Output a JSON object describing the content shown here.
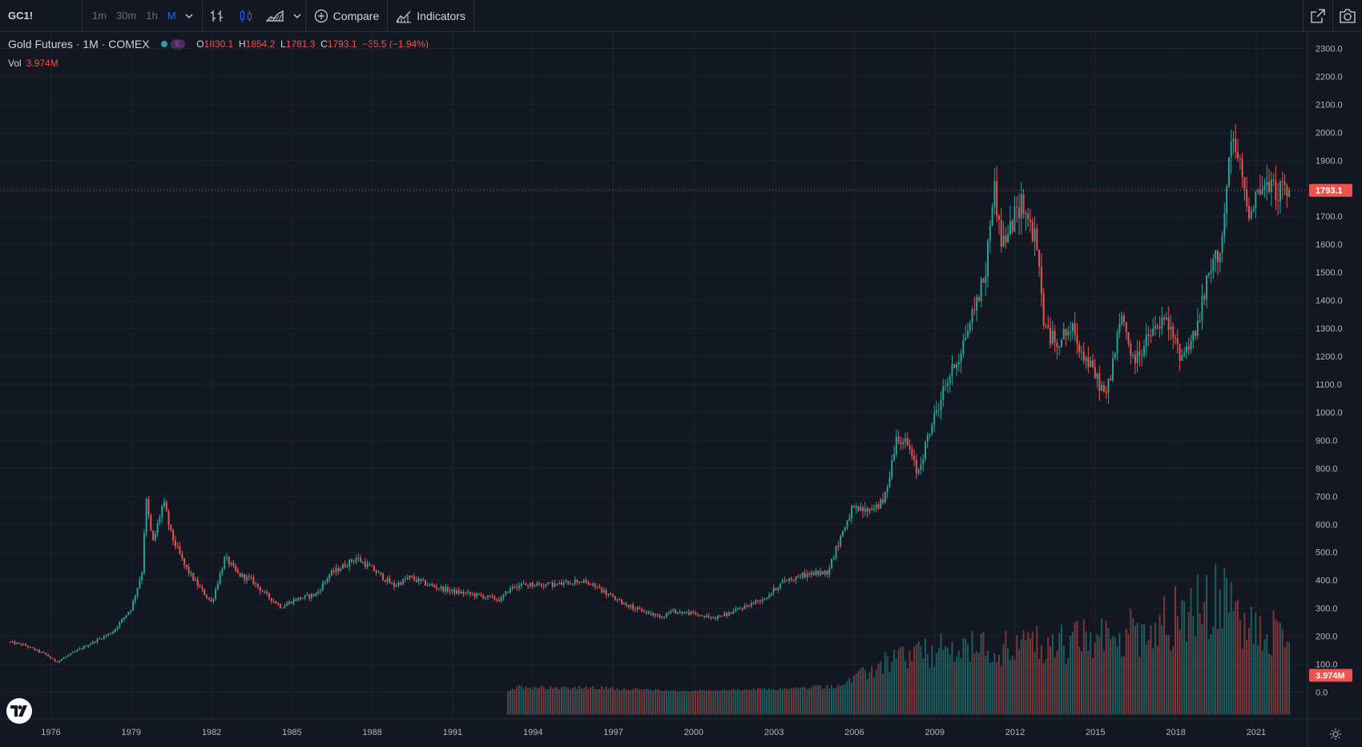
{
  "toolbar": {
    "symbol": "GC1!",
    "intervals": [
      "1m",
      "30m",
      "1h",
      "M"
    ],
    "active_interval": "M",
    "compare_label": "Compare",
    "indicators_label": "Indicators"
  },
  "legend": {
    "name": "Gold Futures · 1M · COMEX",
    "badge": "E",
    "o_label": "O",
    "o": "1830.1",
    "h_label": "H",
    "h": "1854.2",
    "l_label": "L",
    "l": "1781.3",
    "c_label": "C",
    "c": "1793.1",
    "change": "−35.5 (−1.94%)",
    "vol_label": "Vol",
    "vol": "3.974M"
  },
  "colors": {
    "up": "#26a69a",
    "down": "#ef5350",
    "bg": "#131722",
    "grid": "#1e222d",
    "axis_text": "#b2b5be"
  },
  "chart_data": {
    "type": "candlestick",
    "title": "",
    "xlabel": "",
    "ylabel": "",
    "ylim": [
      -30,
      2330
    ],
    "x_ticks": [
      "1976",
      "1979",
      "1982",
      "1985",
      "1988",
      "1991",
      "1994",
      "1997",
      "2000",
      "2003",
      "2006",
      "2009",
      "2012",
      "2015",
      "2018",
      "2021"
    ],
    "y_ticks": [
      "2300.0",
      "2200.0",
      "2100.0",
      "2000.0",
      "1900.0",
      "1800.0",
      "1700.0",
      "1600.0",
      "1500.0",
      "1400.0",
      "1300.0",
      "1200.0",
      "1100.0",
      "1000.0",
      "900.0",
      "800.0",
      "700.0",
      "600.0",
      "500.0",
      "400.0",
      "300.0",
      "200.0",
      "100.0",
      "0.0"
    ],
    "last_price": 1793.1,
    "last_price_label": "1793.1",
    "last_volume_label": "3.974M",
    "grid": true,
    "series": [
      {
        "name": "Gold Futures",
        "price_anchors": [
          [
            1974.9,
            180
          ],
          [
            1975.5,
            168
          ],
          [
            1976.3,
            135
          ],
          [
            1976.7,
            108
          ],
          [
            1977.5,
            150
          ],
          [
            1978.0,
            175
          ],
          [
            1978.8,
            215
          ],
          [
            1979.5,
            300
          ],
          [
            1979.9,
            430
          ],
          [
            1980.05,
            690
          ],
          [
            1980.3,
            530
          ],
          [
            1980.7,
            680
          ],
          [
            1981.0,
            560
          ],
          [
            1981.5,
            450
          ],
          [
            1982.0,
            380
          ],
          [
            1982.5,
            320
          ],
          [
            1983.0,
            480
          ],
          [
            1983.5,
            420
          ],
          [
            1984.0,
            400
          ],
          [
            1984.5,
            350
          ],
          [
            1985.1,
            305
          ],
          [
            1985.6,
            330
          ],
          [
            1986.4,
            350
          ],
          [
            1986.9,
            420
          ],
          [
            1987.9,
            480
          ],
          [
            1988.5,
            440
          ],
          [
            1989.3,
            380
          ],
          [
            1989.9,
            410
          ],
          [
            1990.7,
            380
          ],
          [
            1991.5,
            360
          ],
          [
            1992.5,
            345
          ],
          [
            1993.3,
            330
          ],
          [
            1993.7,
            380
          ],
          [
            1994.5,
            385
          ],
          [
            1995.5,
            385
          ],
          [
            1996.2,
            400
          ],
          [
            1996.9,
            375
          ],
          [
            1997.6,
            330
          ],
          [
            1998.4,
            295
          ],
          [
            1999.3,
            270
          ],
          [
            1999.7,
            290
          ],
          [
            2000.5,
            280
          ],
          [
            2001.2,
            265
          ],
          [
            2001.8,
            280
          ],
          [
            2002.5,
            310
          ],
          [
            2003.2,
            340
          ],
          [
            2003.9,
            400
          ],
          [
            2004.7,
            420
          ],
          [
            2005.5,
            430
          ],
          [
            2006.0,
            560
          ],
          [
            2006.4,
            650
          ],
          [
            2007.0,
            650
          ],
          [
            2007.6,
            680
          ],
          [
            2008.1,
            920
          ],
          [
            2008.5,
            880
          ],
          [
            2008.85,
            780
          ],
          [
            2009.3,
            930
          ],
          [
            2009.9,
            1100
          ],
          [
            2010.4,
            1200
          ],
          [
            2010.9,
            1350
          ],
          [
            2011.4,
            1500
          ],
          [
            2011.7,
            1820
          ],
          [
            2012.0,
            1600
          ],
          [
            2012.3,
            1650
          ],
          [
            2012.75,
            1760
          ],
          [
            2013.3,
            1600
          ],
          [
            2013.6,
            1300
          ],
          [
            2014.0,
            1250
          ],
          [
            2014.6,
            1300
          ],
          [
            2015.2,
            1180
          ],
          [
            2015.9,
            1060
          ],
          [
            2016.5,
            1350
          ],
          [
            2016.9,
            1180
          ],
          [
            2017.6,
            1280
          ],
          [
            2018.1,
            1330
          ],
          [
            2018.7,
            1200
          ],
          [
            2019.3,
            1300
          ],
          [
            2019.7,
            1480
          ],
          [
            2020.2,
            1600
          ],
          [
            2020.6,
            1980
          ],
          [
            2020.9,
            1870
          ],
          [
            2021.2,
            1720
          ],
          [
            2021.6,
            1800
          ],
          [
            2022.0,
            1800
          ],
          [
            2022.5,
            1793
          ]
        ],
        "volume_anchors": [
          [
            1974.9,
            0
          ],
          [
            1993.5,
            0
          ],
          [
            1994.0,
            20
          ],
          [
            1997.5,
            14
          ],
          [
            2000.0,
            4
          ],
          [
            2004.0,
            12
          ],
          [
            2006.0,
            24
          ],
          [
            2008.0,
            120
          ],
          [
            2010.0,
            150
          ],
          [
            2012.0,
            160
          ],
          [
            2013.5,
            170
          ],
          [
            2016.0,
            190
          ],
          [
            2018.0,
            250
          ],
          [
            2019.5,
            300
          ],
          [
            2020.3,
            330
          ],
          [
            2021.0,
            230
          ],
          [
            2022.5,
            200
          ]
        ]
      }
    ]
  }
}
